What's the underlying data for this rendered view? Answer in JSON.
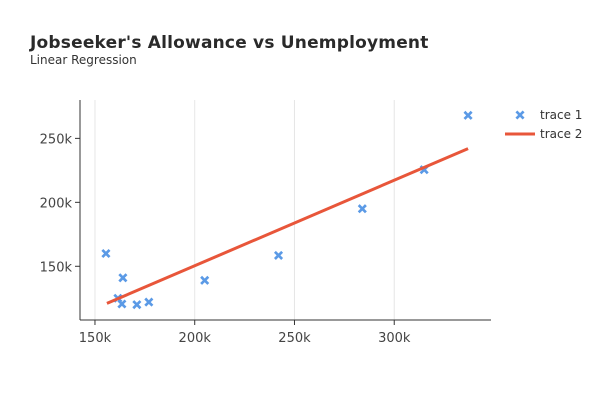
{
  "chart_data": {
    "type": "scatter",
    "title": "Jobseeker's Allowance vs Unemployment",
    "subtitle": "Linear Regression",
    "xlabel": "",
    "ylabel": "",
    "xlim": [
      142500,
      348500
    ],
    "ylim": [
      108000,
      280000
    ],
    "x_ticks": [
      150000,
      200000,
      250000,
      300000
    ],
    "x_tick_labels": [
      "150k",
      "200k",
      "250k",
      "300k"
    ],
    "y_ticks": [
      150000,
      200000,
      250000
    ],
    "y_tick_labels": [
      "150k",
      "200k",
      "250k"
    ],
    "grid": "vertical",
    "legend_position": "right",
    "series": [
      {
        "name": "trace 1",
        "kind": "scatter",
        "marker": "x",
        "color": "#5b9ae6",
        "x": [
          155500,
          161500,
          163500,
          164000,
          171000,
          177000,
          205000,
          242000,
          284000,
          315000,
          337000
        ],
        "y": [
          160000,
          125000,
          120500,
          141000,
          120000,
          122000,
          139000,
          158500,
          195000,
          225500,
          268000
        ]
      },
      {
        "name": "trace 2",
        "kind": "line",
        "color": "#e8563a",
        "x": [
          156000,
          337000
        ],
        "y": [
          121000,
          242000
        ]
      }
    ]
  }
}
